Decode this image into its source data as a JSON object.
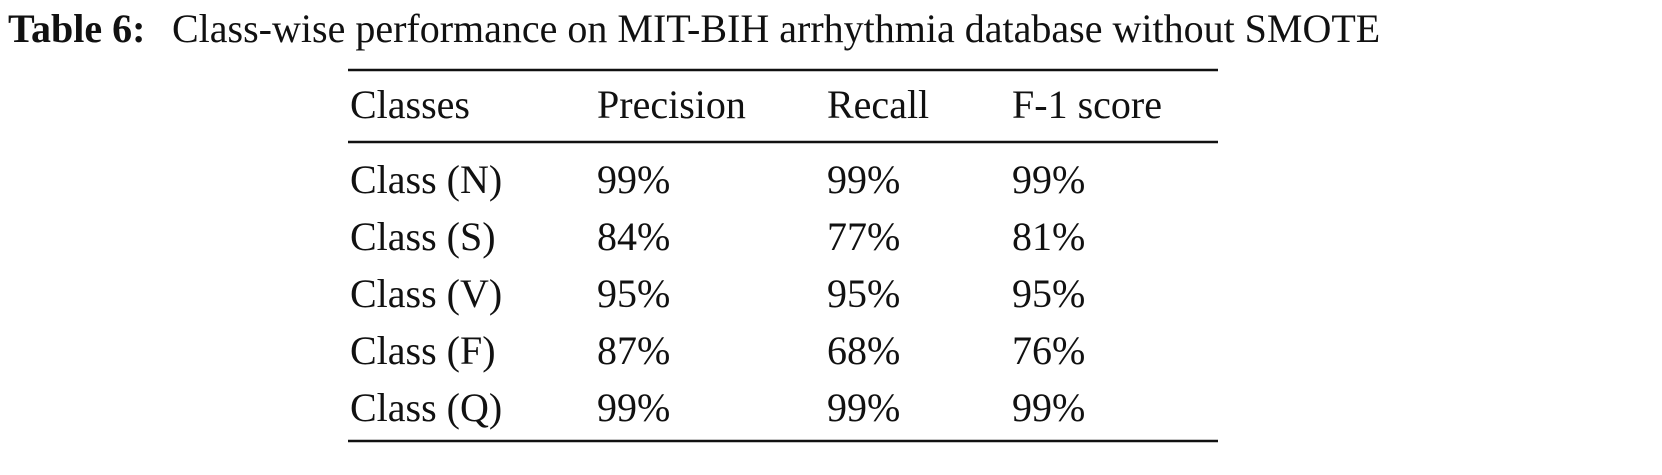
{
  "caption": {
    "label": "Table 6:",
    "text": "Class-wise performance on MIT-BIH arrhythmia database without SMOTE"
  },
  "table": {
    "header": [
      "Classes",
      "Precision",
      "Recall",
      "F-1 score"
    ],
    "rows": [
      [
        "Class (N)",
        "99%",
        "99%",
        "99%"
      ],
      [
        "Class (S)",
        "84%",
        "77%",
        "81%"
      ],
      [
        "Class (V)",
        "95%",
        "95%",
        "95%"
      ],
      [
        "Class (F)",
        "87%",
        "68%",
        "76%"
      ],
      [
        "Class (Q)",
        "99%",
        "99%",
        "99%"
      ]
    ]
  }
}
